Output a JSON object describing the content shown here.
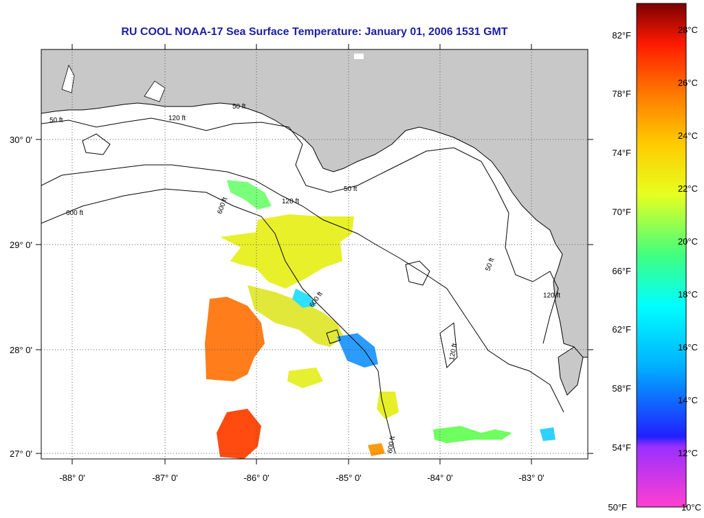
{
  "title": "RU COOL  NOAA-17  Sea Surface Temperature:  January 01, 2006 1531 GMT",
  "map": {
    "lon_labels": [
      "-88° 0'",
      "-87° 0'",
      "-86° 0'",
      "-85° 0'",
      "-84° 0'",
      "-83° 0'"
    ],
    "lat_labels": [
      "30° 0'",
      "29° 0'",
      "28° 0'",
      "27° 0'"
    ],
    "contour_labels": [
      "50 ft",
      "120 ft",
      "600 ft",
      "50 ft",
      "120 ft",
      "600 ft",
      "50 ft",
      "120 ft",
      "600 ft",
      "50 ft",
      "120 ft",
      "600 ft"
    ],
    "colors": {
      "land": "#c8c8c8",
      "water": "#ffffff",
      "grid": "#555555",
      "title": "#1b1fa3"
    }
  },
  "colorbar": {
    "fahrenheit_labels": [
      "82°F",
      "78°F",
      "74°F",
      "70°F",
      "66°F",
      "62°F",
      "58°F",
      "54°F",
      "50°F"
    ],
    "celsius_labels": [
      "28°C",
      "26°C",
      "24°C",
      "22°C",
      "20°C",
      "18°C",
      "16°C",
      "14°C",
      "12°C",
      "10°C"
    ]
  }
}
